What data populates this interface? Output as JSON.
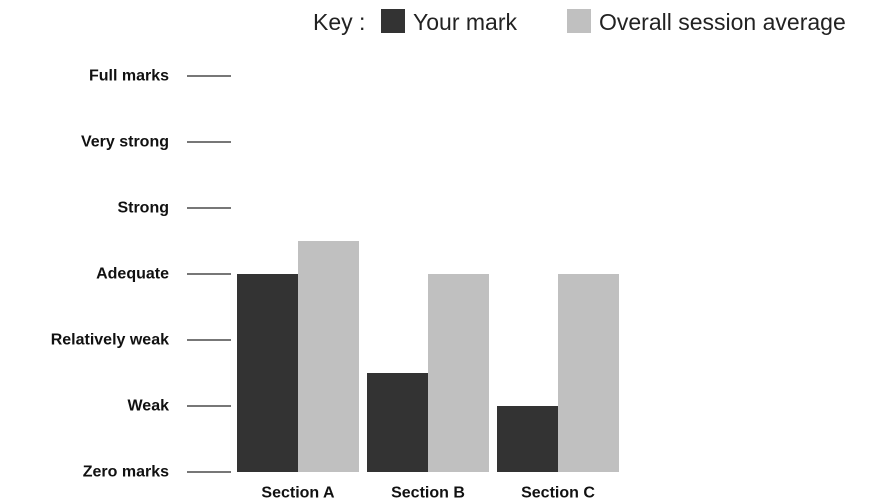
{
  "chart_data": {
    "type": "bar",
    "title": "",
    "xlabel": "",
    "ylabel": "",
    "legend": {
      "prefix": "Key :",
      "position": "top-right"
    },
    "categories": [
      "Section A",
      "Section B",
      "Section C"
    ],
    "y_levels": [
      "Zero marks",
      "Weak",
      "Relatively weak",
      "Adequate",
      "Strong",
      "Very strong",
      "Full marks"
    ],
    "ylim": [
      0,
      6
    ],
    "grid": false,
    "series": [
      {
        "name": "Your mark",
        "color": "#333333",
        "values": [
          3,
          1.5,
          1
        ]
      },
      {
        "name": "Overall session average",
        "color": "#c0c0c0",
        "values": [
          3.5,
          3,
          3
        ]
      }
    ]
  }
}
